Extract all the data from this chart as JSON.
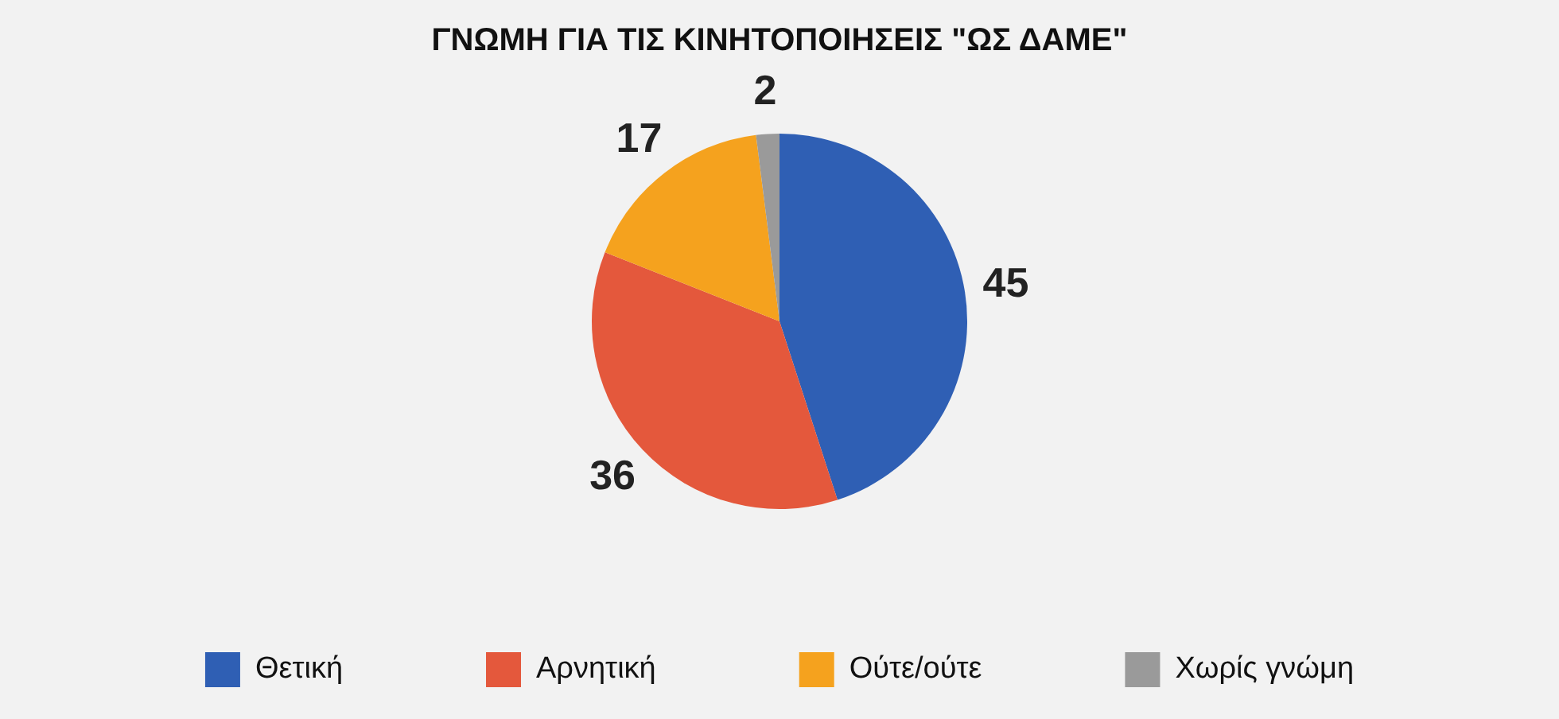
{
  "chart_data": {
    "type": "pie",
    "title": "ΓΝΩΜΗ ΓΙΑ ΤΙΣ ΚΙΝΗΤΟΠΟΙΗΣΕΙΣ \"ΩΣ ΔΑΜΕ\"",
    "categories": [
      "Θετική",
      "Αρνητική",
      "Ούτε/ούτε",
      "Χωρίς γνώμη"
    ],
    "values": [
      45,
      36,
      17,
      2
    ],
    "colors": [
      "#2f5fb4",
      "#e4583c",
      "#f5a21e",
      "#9a9a9a"
    ],
    "data_labels": true,
    "legend": "bottom"
  }
}
